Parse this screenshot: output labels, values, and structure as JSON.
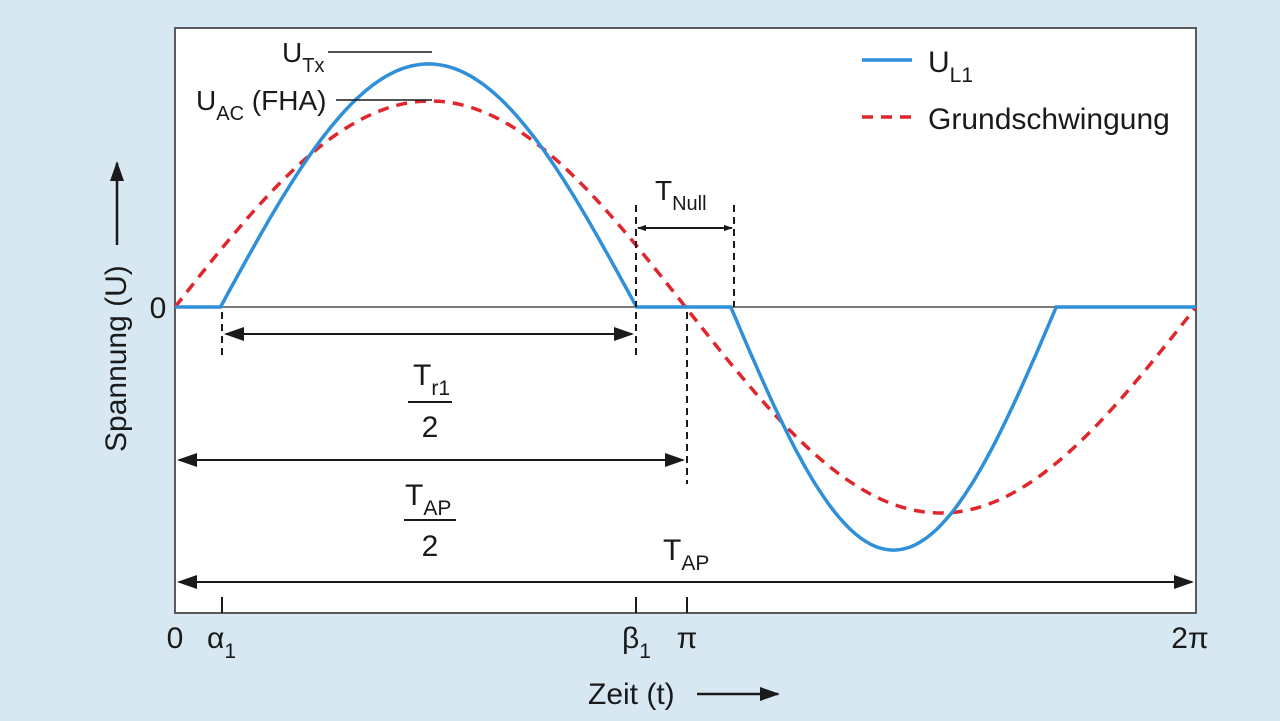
{
  "colors": {
    "background": "#d7e8f3",
    "plot_bg": "#ffffff",
    "ul1": "#2f8fd8",
    "fundamental": "#e0262b",
    "ink": "#1a1a1a"
  },
  "legend": {
    "ul1": {
      "main": "U",
      "sub": "L1"
    },
    "fundamental": {
      "text": "Grundschwingung"
    }
  },
  "y_axis": {
    "label": "Spannung (U)",
    "zero": "0"
  },
  "x_axis": {
    "label": "Zeit (t)",
    "ticks": {
      "zero": "0",
      "alpha1": {
        "main": "α",
        "sub": "1"
      },
      "beta1": {
        "main": "β",
        "sub": "1"
      },
      "pi": "π",
      "two_pi": "2π"
    }
  },
  "annotations": {
    "utx": {
      "main": "U",
      "sub": "Tx"
    },
    "uac": {
      "main": "U",
      "sub": "AC",
      "suffix": " (FHA)"
    },
    "tnull": {
      "main": "T",
      "sub": "Null"
    },
    "tr1_half": {
      "main": "T",
      "sub": "r1",
      "denominator": "2"
    },
    "tap_half": {
      "main": "T",
      "sub": "AP",
      "denominator": "2"
    },
    "tap": {
      "main": "T",
      "sub": "AP"
    }
  },
  "chart_data": {
    "type": "line",
    "x_domain": [
      0,
      6.2832
    ],
    "alpha1": 0.28,
    "beta1": 2.84,
    "tnull_end": 3.42,
    "series": [
      {
        "key": "ul1",
        "amplitude": 1.18,
        "style": "solid"
      },
      {
        "key": "fundamental",
        "amplitude": 1.0,
        "style": "dashed"
      }
    ]
  }
}
